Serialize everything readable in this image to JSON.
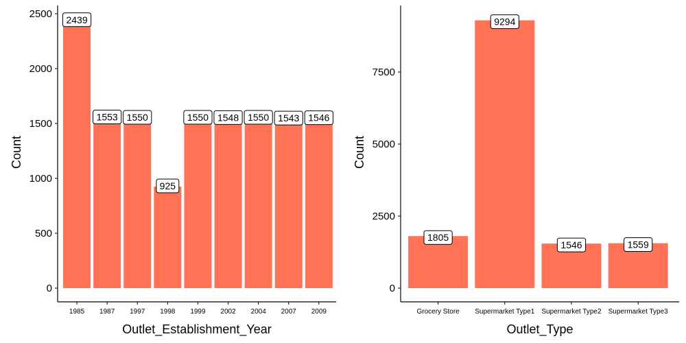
{
  "chart_data": [
    {
      "type": "bar",
      "xlabel": "Outlet_Establishment_Year",
      "ylabel": "Count",
      "categories": [
        "1985",
        "1987",
        "1997",
        "1998",
        "1999",
        "2002",
        "2004",
        "2007",
        "2009"
      ],
      "values": [
        2439,
        1553,
        1550,
        925,
        1550,
        1548,
        1550,
        1543,
        1546
      ],
      "data_labels": [
        "2439",
        "1553",
        "1550",
        "925",
        "1550",
        "1548",
        "1550",
        "1543",
        "1546"
      ],
      "ylim": [
        0,
        2500
      ],
      "yticks": [
        0,
        500,
        1000,
        1500,
        2000,
        2500
      ],
      "ytick_labels": [
        "0",
        "500",
        "1000",
        "1500",
        "2000",
        "2500"
      ],
      "bar_color": "#FF7256",
      "grid": false
    },
    {
      "type": "bar",
      "xlabel": "Outlet_Type",
      "ylabel": "Count",
      "categories": [
        "Grocery Store",
        "Supermarket Type1",
        "Supermarket Type2",
        "Supermarket Type3"
      ],
      "values": [
        1805,
        9294,
        1546,
        1559
      ],
      "data_labels": [
        "1805",
        "9294",
        "1546",
        "1559"
      ],
      "ylim": [
        0,
        9500
      ],
      "yticks": [
        0,
        2500,
        5000,
        7500
      ],
      "ytick_labels": [
        "0",
        "2500",
        "5000",
        "7500"
      ],
      "bar_color": "#FF7256",
      "grid": false
    }
  ]
}
